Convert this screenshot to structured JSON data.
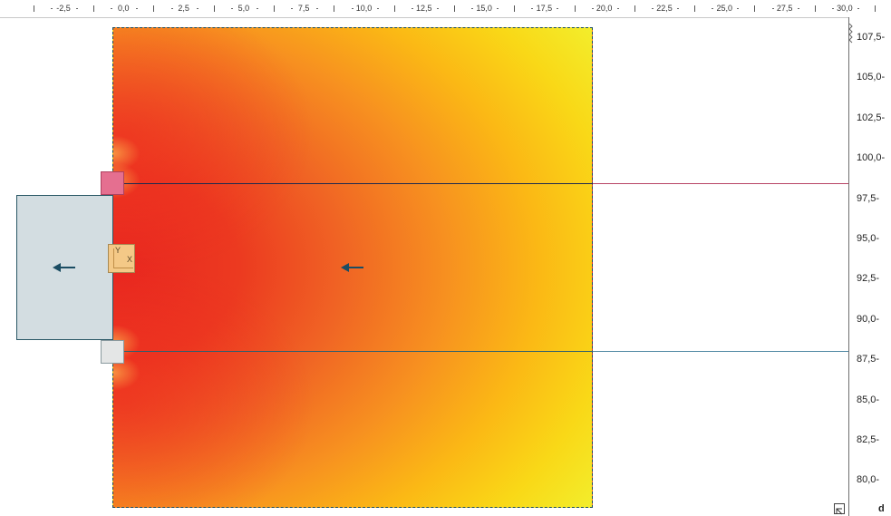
{
  "top_ruler": {
    "labels": [
      "-2,5",
      "0,0",
      "2,5",
      "5,0",
      "7,5",
      "10,0",
      "12,5",
      "15,0",
      "17,5",
      "20,0",
      "22,5",
      "25,0",
      "27,5",
      "30,0"
    ]
  },
  "right_ruler": {
    "labels": [
      "107,5",
      "105,0",
      "102,5",
      "100,0",
      "97,5",
      "95,0",
      "92,5",
      "90,0",
      "87,5",
      "85,0",
      "82,5",
      "80,0"
    ]
  },
  "axis_glyph": {
    "y_label": "Y",
    "x_label": "X"
  },
  "corner": {
    "letter": "d"
  },
  "colors": {
    "heat_hot": "#e8261f",
    "heat_mid": "#f79020",
    "heat_cool": "#f3ec2a",
    "boundary": "#1c4e60",
    "gray_box_fill": "#d3dde1",
    "top_line": "#b84566",
    "bottom_line": "#4f88a2",
    "arrow": "#1b4d63"
  },
  "icons": {
    "flow_arrow": "arrow-left-icon",
    "restore": "restore-window-icon"
  }
}
